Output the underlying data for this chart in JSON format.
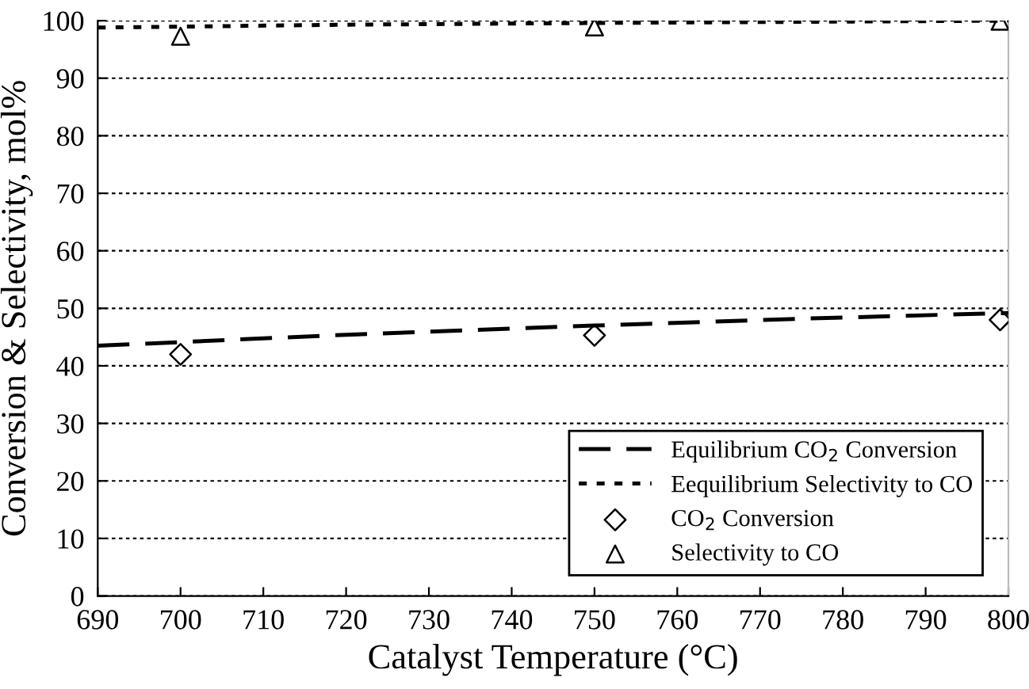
{
  "chart_data": {
    "type": "line",
    "xlabel": "Catalyst Temperature (°C)",
    "ylabel": "Conversion & Selectivity, mol%",
    "xlim": [
      690,
      800
    ],
    "xticks": [
      690,
      700,
      710,
      720,
      730,
      740,
      750,
      760,
      770,
      780,
      790,
      800
    ],
    "ylim": [
      0,
      100
    ],
    "yticks": [
      0,
      10,
      20,
      30,
      40,
      50,
      60,
      70,
      80,
      90,
      100
    ],
    "grid": "y",
    "legend": "bottom right",
    "series": [
      {
        "name": "Equilibrium CO$_{2}$ Conversion",
        "line_style": "dashed",
        "color": "#000000",
        "x": [
          690,
          720,
          750,
          775,
          800
        ],
        "values": [
          43.5,
          45.4,
          47.0,
          48.2,
          49.2
        ]
      },
      {
        "name": "Eequilibrium Selectivity to CO",
        "line_style": "dotted",
        "color": "#000000",
        "x": [
          690,
          720,
          750,
          775,
          800
        ],
        "values": [
          98.8,
          99.3,
          99.6,
          99.8,
          100
        ]
      },
      {
        "name": "CO$_{2}$ Conversion",
        "type": "scatter",
        "marker": "diamond",
        "color": "#000000",
        "x": [
          700,
          750,
          799
        ],
        "values": [
          42,
          45.3,
          48
        ]
      },
      {
        "name": "Selectivity to CO",
        "type": "scatter",
        "marker": "triangle",
        "color": "#000000",
        "x": [
          700,
          750,
          799
        ],
        "values": [
          97.3,
          98.9,
          99.9
        ]
      }
    ]
  }
}
